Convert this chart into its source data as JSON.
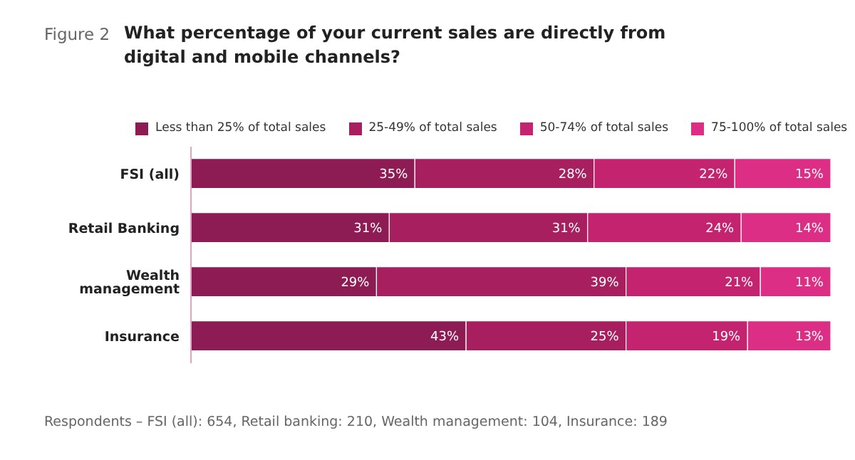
{
  "chart_data": {
    "type": "bar",
    "orientation": "horizontal",
    "stacked": true,
    "title": "What percentage of your current sales are directly from digital and mobile channels?",
    "annotations": [
      "Figure 2",
      "Respondents – FSI (all): 654, Retail banking: 210, Wealth management: 104, Insurance: 189"
    ],
    "categories": [
      "FSI (all)",
      "Retail Banking",
      "Wealth management",
      "Insurance"
    ],
    "xlim": [
      0,
      100
    ],
    "tick_labels": "y",
    "legend": "top",
    "grid": false,
    "series": [
      {
        "name": "Less than 25% of total sales",
        "color": "#8e1c54",
        "values": [
          35,
          31,
          29,
          43
        ],
        "value_labels": [
          "35%",
          "31%",
          "29%",
          "43%"
        ]
      },
      {
        "name": "25-49% of total sales",
        "color": "#a81f60",
        "values": [
          28,
          31,
          39,
          25
        ],
        "value_labels": [
          "28%",
          "31%",
          "39%",
          "25%"
        ]
      },
      {
        "name": "50-74% of total sales",
        "color": "#c4236f",
        "values": [
          22,
          24,
          21,
          19
        ],
        "value_labels": [
          "22%",
          "24%",
          "21%",
          "19%"
        ]
      },
      {
        "name": "75-100% of total sales",
        "color": "#dd2e86",
        "values": [
          15,
          14,
          11,
          13
        ],
        "value_labels": [
          "15%",
          "14%",
          "11%",
          "13%"
        ]
      }
    ]
  }
}
